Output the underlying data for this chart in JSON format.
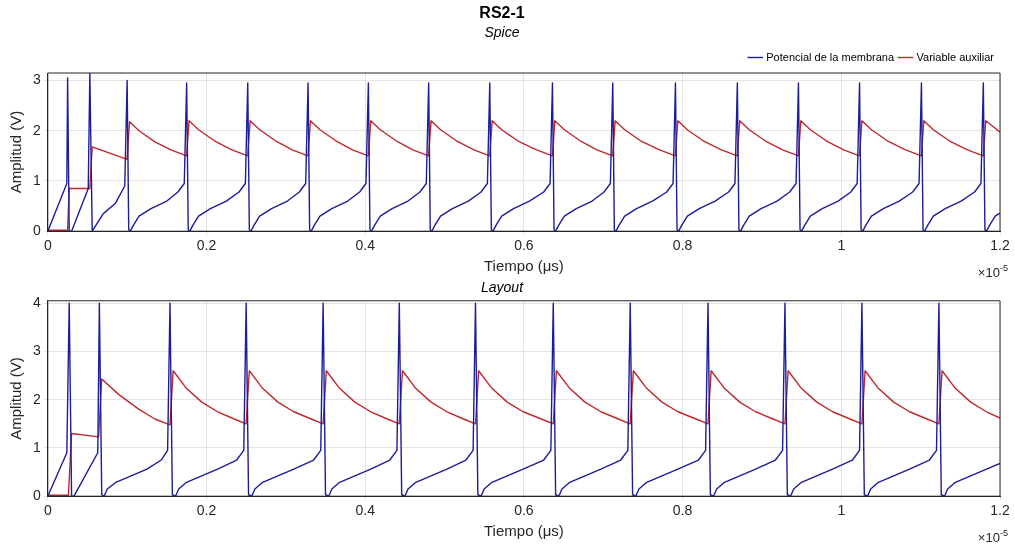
{
  "chart_data": [
    {
      "type": "line",
      "title": "RS2-1",
      "subtitle": "Spice",
      "xlabel": "Tiempo (μs)",
      "ylabel": "Amplitud (V)",
      "xlim": [
        0,
        1.2
      ],
      "xticks": [
        0,
        0.2,
        0.4,
        0.6,
        0.8,
        1,
        1.2
      ],
      "ylim": [
        0,
        3.15
      ],
      "yticks": [
        0,
        1,
        2,
        3
      ],
      "grid": true,
      "legend": "top right",
      "annotations": [
        "×10$^{-5}$"
      ],
      "series": [
        {
          "name": "Potencial de la membrana",
          "color": "#1c1c9c",
          "x": [
            0,
            0.024,
            0.025,
            0.027,
            0.03,
            0.051,
            0.053,
            0.056,
            0.06,
            0.07,
            0.085,
            0.097,
            0.1,
            0.102,
            0.104,
            0.108,
            0.115,
            0.13,
            0.15,
            0.164,
            0.172,
            0.175,
            0.177,
            0.179,
            0.183,
            0.19,
            0.205,
            0.225,
            0.241,
            0.249,
            0.252,
            0.254,
            0.256,
            0.26,
            0.267,
            0.282,
            0.302,
            0.317,
            0.325,
            0.328,
            0.33,
            0.332,
            0.336,
            0.343,
            0.358,
            0.378,
            0.393,
            0.401,
            0.404,
            0.406,
            0.408,
            0.412,
            0.419,
            0.434,
            0.454,
            0.469,
            0.477,
            0.48,
            0.482,
            0.484,
            0.488,
            0.495,
            0.51,
            0.53,
            0.546,
            0.554,
            0.557,
            0.559,
            0.561,
            0.565,
            0.572,
            0.587,
            0.607,
            0.625,
            0.633,
            0.636,
            0.638,
            0.64,
            0.644,
            0.651,
            0.666,
            0.686,
            0.701,
            0.709,
            0.712,
            0.714,
            0.716,
            0.72,
            0.727,
            0.742,
            0.762,
            0.78,
            0.788,
            0.791,
            0.793,
            0.795,
            0.799,
            0.806,
            0.821,
            0.841,
            0.858,
            0.866,
            0.869,
            0.871,
            0.873,
            0.877,
            0.884,
            0.899,
            0.919,
            0.935,
            0.943,
            0.946,
            0.948,
            0.95,
            0.954,
            0.961,
            0.976,
            0.996,
            1.012,
            1.02,
            1.023,
            1.025,
            1.027,
            1.031,
            1.038,
            1.053,
            1.073,
            1.09,
            1.098,
            1.101,
            1.103,
            1.105,
            1.109,
            1.116,
            1.131,
            1.151,
            1.168,
            1.176,
            1.179,
            1.181,
            1.183,
            1.187,
            1.194,
            1.2
          ],
          "values": [
            0,
            0.95,
            3.05,
            0,
            0,
            0.85,
            3.15,
            0,
            0.1,
            0.35,
            0.55,
            0.9,
            3.0,
            0.03,
            0,
            0.12,
            0.3,
            0.45,
            0.6,
            0.78,
            0.95,
            2.95,
            0.03,
            0,
            0.12,
            0.3,
            0.45,
            0.6,
            0.78,
            0.95,
            2.95,
            0.03,
            0,
            0.12,
            0.3,
            0.45,
            0.6,
            0.78,
            0.95,
            2.95,
            0.03,
            0,
            0.12,
            0.3,
            0.45,
            0.6,
            0.78,
            0.95,
            2.95,
            0.03,
            0,
            0.12,
            0.3,
            0.45,
            0.6,
            0.78,
            0.95,
            2.95,
            0.03,
            0,
            0.12,
            0.3,
            0.45,
            0.6,
            0.78,
            0.95,
            2.95,
            0.03,
            0,
            0.12,
            0.3,
            0.45,
            0.6,
            0.78,
            0.95,
            2.95,
            0.03,
            0,
            0.12,
            0.3,
            0.45,
            0.6,
            0.78,
            0.95,
            2.95,
            0.03,
            0,
            0.12,
            0.3,
            0.45,
            0.6,
            0.78,
            0.95,
            2.95,
            0.03,
            0,
            0.12,
            0.3,
            0.45,
            0.6,
            0.78,
            0.95,
            2.95,
            0.03,
            0,
            0.12,
            0.3,
            0.45,
            0.6,
            0.78,
            0.95,
            2.95,
            0.03,
            0,
            0.12,
            0.3,
            0.45,
            0.6,
            0.78,
            0.95,
            2.95,
            0.03,
            0,
            0.12,
            0.3,
            0.45,
            0.6,
            0.78,
            0.95,
            2.95,
            0.03,
            0,
            0.12,
            0.3,
            0.45,
            0.6,
            0.78,
            0.95,
            2.95,
            0.03,
            0,
            0.12,
            0.3,
            0.36
          ]
        },
        {
          "name": "Variable auxiliar",
          "color": "#c0282e",
          "x": [
            0,
            0.025,
            0.027,
            0.053,
            0.056,
            0.1,
            0.103,
            0.115,
            0.135,
            0.155,
            0.175,
            0.178,
            0.19,
            0.21,
            0.232,
            0.252,
            0.255,
            0.267,
            0.287,
            0.308,
            0.328,
            0.331,
            0.343,
            0.363,
            0.384,
            0.404,
            0.407,
            0.419,
            0.439,
            0.46,
            0.48,
            0.483,
            0.495,
            0.515,
            0.537,
            0.557,
            0.56,
            0.572,
            0.592,
            0.616,
            0.636,
            0.639,
            0.651,
            0.671,
            0.692,
            0.712,
            0.715,
            0.727,
            0.747,
            0.771,
            0.791,
            0.794,
            0.806,
            0.826,
            0.849,
            0.869,
            0.872,
            0.884,
            0.904,
            0.926,
            0.946,
            0.949,
            0.961,
            0.981,
            1.003,
            1.023,
            1.026,
            1.038,
            1.058,
            1.081,
            1.101,
            1.104,
            1.116,
            1.136,
            1.159,
            1.179,
            1.182,
            1.194,
            1.2
          ],
          "values": [
            0.02,
            0.02,
            0.85,
            0.85,
            1.68,
            1.43,
            2.18,
            2.0,
            1.78,
            1.62,
            1.5,
            2.2,
            2.02,
            1.8,
            1.62,
            1.5,
            2.2,
            2.02,
            1.8,
            1.62,
            1.5,
            2.2,
            2.02,
            1.8,
            1.62,
            1.5,
            2.2,
            2.02,
            1.8,
            1.62,
            1.5,
            2.2,
            2.02,
            1.8,
            1.62,
            1.5,
            2.2,
            2.02,
            1.8,
            1.62,
            1.5,
            2.2,
            2.02,
            1.8,
            1.62,
            1.5,
            2.2,
            2.02,
            1.8,
            1.62,
            1.5,
            2.2,
            2.02,
            1.8,
            1.62,
            1.5,
            2.2,
            2.02,
            1.8,
            1.62,
            1.5,
            2.2,
            2.02,
            1.8,
            1.62,
            1.5,
            2.2,
            2.02,
            1.8,
            1.62,
            1.5,
            2.2,
            2.02,
            1.8,
            1.62,
            1.5,
            2.2,
            2.05,
            1.97
          ]
        }
      ]
    },
    {
      "type": "line",
      "subtitle": "Layout",
      "xlabel": "Tiempo (μs)",
      "ylabel": "Amplitud (V)",
      "xlim": [
        0,
        1.2
      ],
      "xticks": [
        0,
        0.2,
        0.4,
        0.6,
        0.8,
        1,
        1.2
      ],
      "ylim": [
        0,
        4.05
      ],
      "yticks": [
        0,
        1,
        2,
        3,
        4
      ],
      "grid": true,
      "annotations": [
        "×10$^{-5}$"
      ],
      "series": [
        {
          "color": "#1c1c9c",
          "x": [
            0,
            0.024,
            0.027,
            0.03,
            0.033,
            0.063,
            0.065,
            0.068,
            0.071,
            0.075,
            0.085,
            0.105,
            0.125,
            0.143,
            0.151,
            0.154,
            0.157,
            0.161,
            0.165,
            0.174,
            0.194,
            0.214,
            0.238,
            0.247,
            0.25,
            0.253,
            0.257,
            0.261,
            0.27,
            0.29,
            0.31,
            0.335,
            0.344,
            0.347,
            0.35,
            0.354,
            0.358,
            0.367,
            0.387,
            0.407,
            0.431,
            0.44,
            0.443,
            0.446,
            0.45,
            0.454,
            0.463,
            0.483,
            0.503,
            0.527,
            0.536,
            0.539,
            0.542,
            0.546,
            0.55,
            0.559,
            0.579,
            0.599,
            0.625,
            0.634,
            0.637,
            0.64,
            0.644,
            0.648,
            0.657,
            0.677,
            0.697,
            0.722,
            0.731,
            0.734,
            0.737,
            0.741,
            0.745,
            0.754,
            0.774,
            0.794,
            0.82,
            0.829,
            0.832,
            0.835,
            0.839,
            0.843,
            0.852,
            0.872,
            0.892,
            0.917,
            0.926,
            0.929,
            0.932,
            0.936,
            0.94,
            0.949,
            0.969,
            0.989,
            1.014,
            1.023,
            1.026,
            1.029,
            1.033,
            1.037,
            1.046,
            1.066,
            1.086,
            1.111,
            1.12,
            1.123,
            1.126,
            1.13,
            1.134,
            1.143,
            1.163,
            1.183,
            1.2
          ],
          "values": [
            0,
            0.9,
            4.0,
            0,
            0,
            0.9,
            4.0,
            0.03,
            0,
            0.15,
            0.28,
            0.42,
            0.56,
            0.75,
            0.95,
            4.0,
            0.03,
            0,
            0.15,
            0.28,
            0.42,
            0.56,
            0.75,
            0.95,
            4.0,
            0.03,
            0,
            0.15,
            0.28,
            0.42,
            0.56,
            0.75,
            0.95,
            4.0,
            0.03,
            0,
            0.15,
            0.28,
            0.42,
            0.56,
            0.75,
            0.95,
            4.0,
            0.03,
            0,
            0.15,
            0.28,
            0.42,
            0.56,
            0.75,
            0.95,
            4.0,
            0.03,
            0,
            0.15,
            0.28,
            0.42,
            0.56,
            0.75,
            0.95,
            4.0,
            0.03,
            0,
            0.15,
            0.28,
            0.42,
            0.56,
            0.75,
            0.95,
            4.0,
            0.03,
            0,
            0.15,
            0.28,
            0.42,
            0.56,
            0.75,
            0.95,
            4.0,
            0.03,
            0,
            0.15,
            0.28,
            0.42,
            0.56,
            0.75,
            0.95,
            4.0,
            0.03,
            0,
            0.15,
            0.28,
            0.42,
            0.56,
            0.75,
            0.95,
            4.0,
            0.03,
            0,
            0.15,
            0.28,
            0.42,
            0.56,
            0.75,
            0.95,
            4.0,
            0.03,
            0,
            0.15,
            0.28,
            0.42,
            0.56,
            0.68
          ]
        },
        {
          "color": "#c0282e",
          "x": [
            0,
            0.026,
            0.03,
            0.064,
            0.068,
            0.09,
            0.115,
            0.135,
            0.154,
            0.158,
            0.174,
            0.194,
            0.214,
            0.235,
            0.25,
            0.254,
            0.27,
            0.29,
            0.31,
            0.332,
            0.347,
            0.351,
            0.367,
            0.387,
            0.407,
            0.428,
            0.443,
            0.447,
            0.463,
            0.483,
            0.503,
            0.524,
            0.539,
            0.543,
            0.559,
            0.579,
            0.599,
            0.622,
            0.637,
            0.641,
            0.657,
            0.677,
            0.697,
            0.719,
            0.734,
            0.738,
            0.754,
            0.774,
            0.794,
            0.817,
            0.832,
            0.836,
            0.852,
            0.872,
            0.892,
            0.914,
            0.929,
            0.933,
            0.949,
            0.969,
            0.989,
            1.011,
            1.026,
            1.03,
            1.046,
            1.066,
            1.086,
            1.108,
            1.123,
            1.127,
            1.143,
            1.163,
            1.183,
            1.2
          ],
          "values": [
            0.02,
            0.02,
            1.3,
            1.23,
            2.43,
            2.1,
            1.8,
            1.6,
            1.48,
            2.6,
            2.25,
            1.95,
            1.75,
            1.6,
            1.5,
            2.6,
            2.25,
            1.95,
            1.75,
            1.6,
            1.5,
            2.6,
            2.25,
            1.95,
            1.75,
            1.6,
            1.5,
            2.6,
            2.25,
            1.95,
            1.75,
            1.6,
            1.5,
            2.6,
            2.25,
            1.95,
            1.75,
            1.6,
            1.5,
            2.6,
            2.25,
            1.95,
            1.75,
            1.6,
            1.5,
            2.6,
            2.25,
            1.95,
            1.75,
            1.6,
            1.5,
            2.6,
            2.25,
            1.95,
            1.75,
            1.6,
            1.5,
            2.6,
            2.25,
            1.95,
            1.75,
            1.6,
            1.5,
            2.6,
            2.25,
            1.95,
            1.75,
            1.6,
            1.5,
            2.6,
            2.25,
            1.95,
            1.75,
            1.62
          ]
        }
      ]
    }
  ]
}
